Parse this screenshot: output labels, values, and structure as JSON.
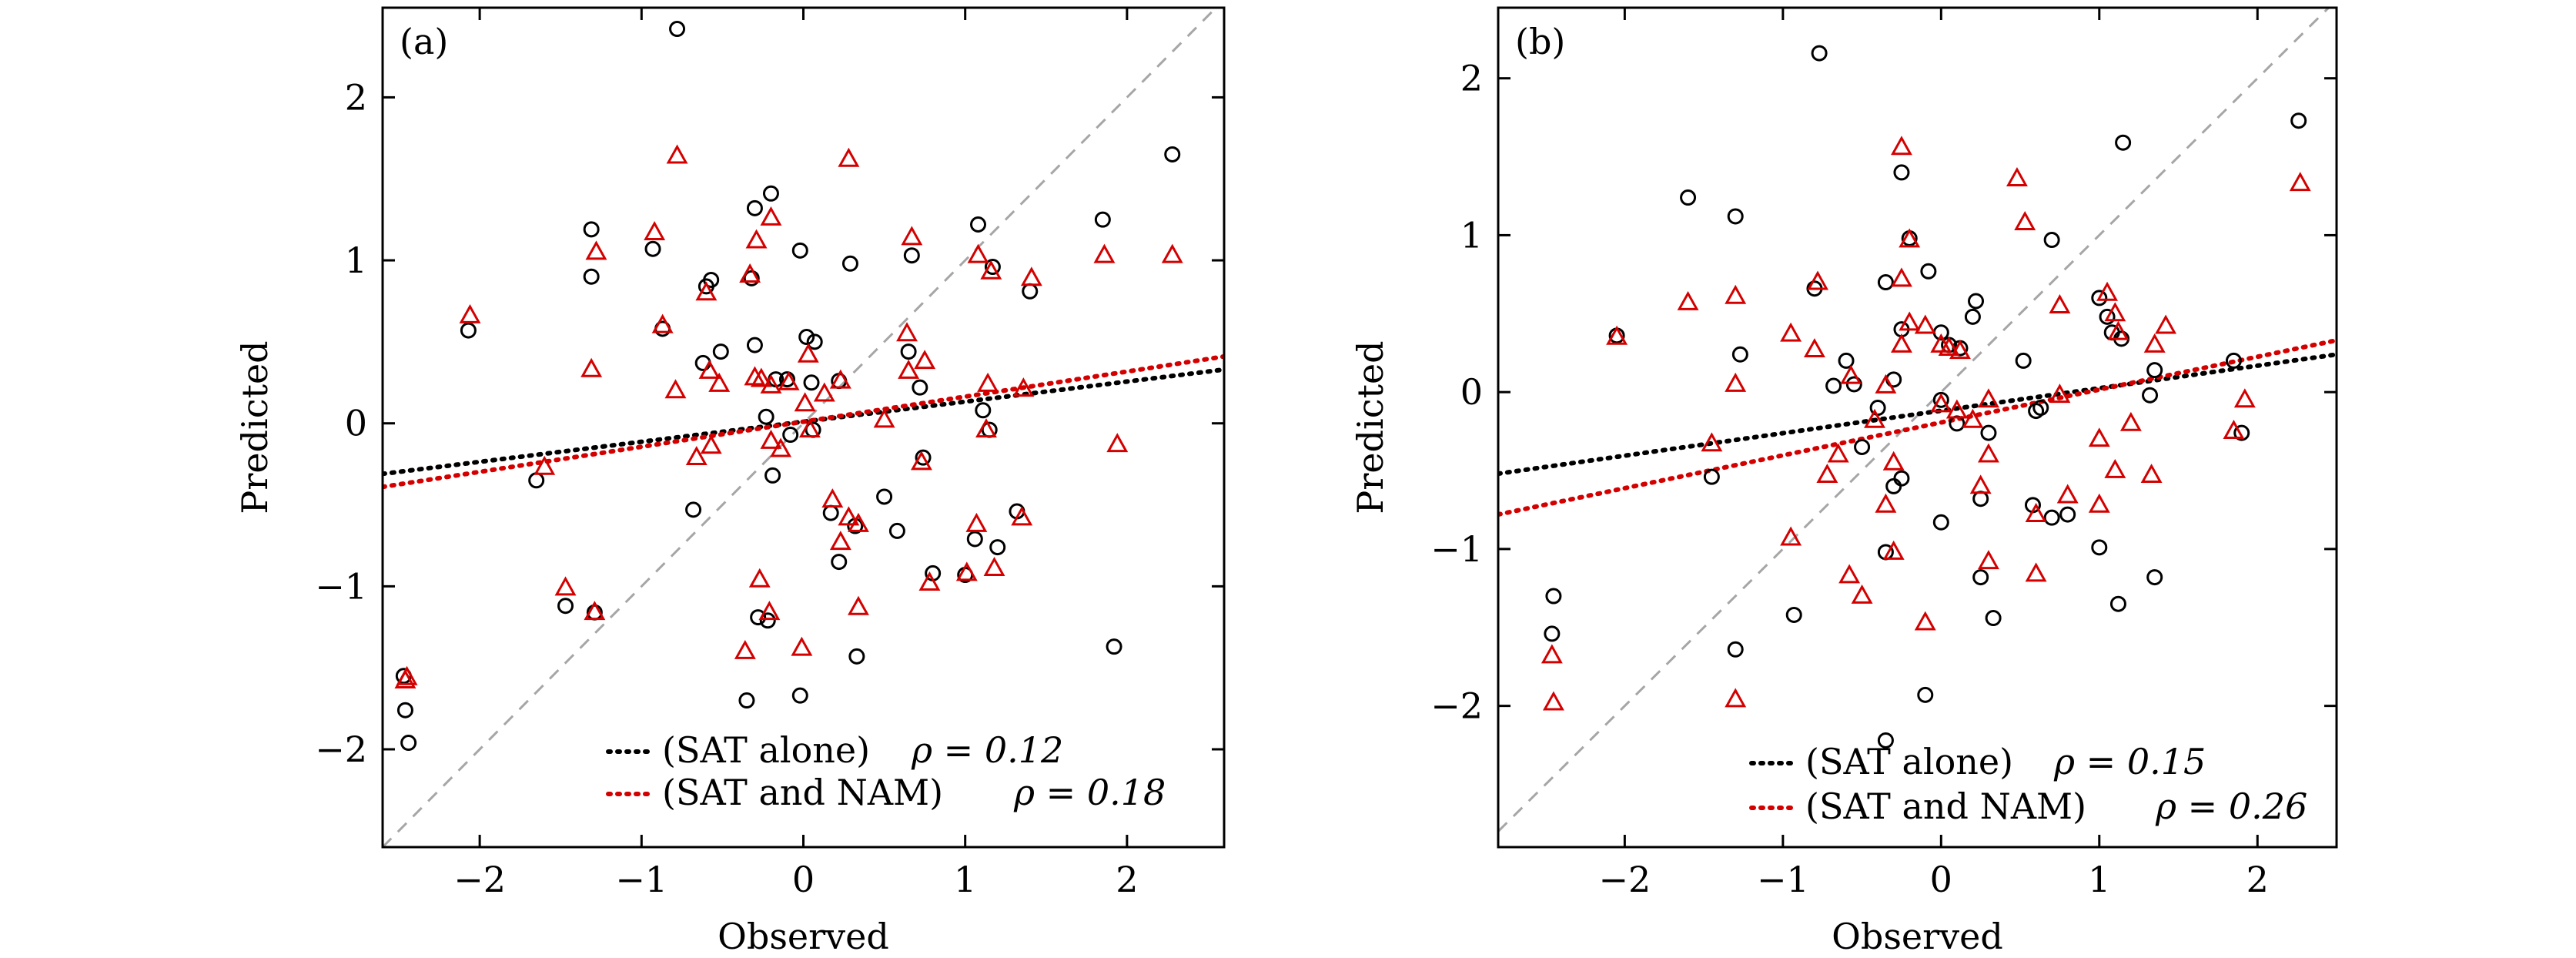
{
  "chart_data": [
    {
      "type": "scatter",
      "panel_label": "(a)",
      "xlabel": "Observed",
      "ylabel": "Predicted",
      "xlim": [
        -2.6,
        2.6
      ],
      "ylim": [
        -2.6,
        2.55
      ],
      "xticks": [
        -2,
        -1,
        0,
        1,
        2
      ],
      "yticks": [
        -2,
        -1,
        0,
        1,
        2
      ],
      "tick_labels_x": [
        "−2",
        "−1",
        "0",
        "1",
        "2"
      ],
      "tick_labels_y": [
        "−2",
        "−1",
        "0",
        "1",
        "2"
      ],
      "reference_line": "y = x (grey dashed)",
      "legend_position": "bottom-center",
      "series": [
        {
          "name": "(SAT alone)",
          "legend_label": "(SAT alone)",
          "rho_label": "ρ = 0.12",
          "marker": "circle",
          "color": "#000000",
          "fit": {
            "x": [
              -2.6,
              2.6
            ],
            "y": [
              -0.31,
              0.33
            ]
          },
          "points": [
            [
              -0.78,
              2.42
            ],
            [
              2.28,
              1.65
            ],
            [
              1.85,
              1.25
            ],
            [
              1.08,
              1.22
            ],
            [
              -0.2,
              1.41
            ],
            [
              -0.3,
              1.32
            ],
            [
              -1.31,
              1.19
            ],
            [
              -0.93,
              1.07
            ],
            [
              -0.02,
              1.06
            ],
            [
              0.29,
              0.98
            ],
            [
              0.67,
              1.03
            ],
            [
              1.17,
              0.96
            ],
            [
              -1.31,
              0.9
            ],
            [
              -0.6,
              0.84
            ],
            [
              -0.57,
              0.88
            ],
            [
              -0.32,
              0.89
            ],
            [
              1.4,
              0.81
            ],
            [
              -0.87,
              0.58
            ],
            [
              -2.07,
              0.57
            ],
            [
              -0.51,
              0.44
            ],
            [
              0.02,
              0.53
            ],
            [
              0.07,
              0.5
            ],
            [
              0.65,
              0.44
            ],
            [
              -0.62,
              0.37
            ],
            [
              -0.3,
              0.48
            ],
            [
              -0.17,
              0.27
            ],
            [
              0.05,
              0.25
            ],
            [
              0.22,
              0.26
            ],
            [
              -0.1,
              0.27
            ],
            [
              1.11,
              0.08
            ],
            [
              0.72,
              0.22
            ],
            [
              1.15,
              -0.04
            ],
            [
              -0.23,
              0.04
            ],
            [
              0.06,
              -0.04
            ],
            [
              -0.08,
              -0.07
            ],
            [
              -1.65,
              -0.35
            ],
            [
              -0.19,
              -0.32
            ],
            [
              0.74,
              -0.21
            ],
            [
              -0.68,
              -0.53
            ],
            [
              0.17,
              -0.55
            ],
            [
              0.5,
              -0.45
            ],
            [
              0.32,
              -0.63
            ],
            [
              0.58,
              -0.66
            ],
            [
              1.32,
              -0.54
            ],
            [
              1.06,
              -0.71
            ],
            [
              1.2,
              -0.76
            ],
            [
              0.22,
              -0.85
            ],
            [
              0.8,
              -0.92
            ],
            [
              1.0,
              -0.93
            ],
            [
              -1.47,
              -1.12
            ],
            [
              -1.29,
              -1.16
            ],
            [
              -0.28,
              -1.19
            ],
            [
              -0.22,
              -1.21
            ],
            [
              0.33,
              -1.43
            ],
            [
              1.92,
              -1.37
            ],
            [
              -0.35,
              -1.7
            ],
            [
              -0.02,
              -1.67
            ],
            [
              -2.46,
              -1.76
            ],
            [
              -2.44,
              -1.96
            ],
            [
              -2.47,
              -1.55
            ]
          ]
        },
        {
          "name": "(SAT and NAM)",
          "legend_label": "(SAT and NAM)",
          "rho_label": "ρ = 0.18",
          "marker": "triangle",
          "color": "#d40000",
          "fit": {
            "x": [
              -2.6,
              2.6
            ],
            "y": [
              -0.39,
              0.41
            ]
          },
          "points": [
            [
              -0.78,
              1.64
            ],
            [
              0.28,
              1.62
            ],
            [
              -0.92,
              1.17
            ],
            [
              -0.29,
              1.12
            ],
            [
              -0.2,
              1.26
            ],
            [
              1.08,
              1.03
            ],
            [
              0.67,
              1.14
            ],
            [
              1.86,
              1.03
            ],
            [
              2.28,
              1.03
            ],
            [
              -1.28,
              1.05
            ],
            [
              1.16,
              0.93
            ],
            [
              1.41,
              0.89
            ],
            [
              -0.33,
              0.91
            ],
            [
              -0.6,
              0.8
            ],
            [
              -2.06,
              0.66
            ],
            [
              -0.87,
              0.6
            ],
            [
              0.64,
              0.55
            ],
            [
              -1.31,
              0.33
            ],
            [
              -0.58,
              0.32
            ],
            [
              0.03,
              0.42
            ],
            [
              0.75,
              0.38
            ],
            [
              0.65,
              0.32
            ],
            [
              -0.52,
              0.24
            ],
            [
              -0.26,
              0.27
            ],
            [
              -0.2,
              0.23
            ],
            [
              -0.3,
              0.28
            ],
            [
              0.13,
              0.18
            ],
            [
              0.23,
              0.26
            ],
            [
              -0.09,
              0.25
            ],
            [
              -0.79,
              0.2
            ],
            [
              1.14,
              0.24
            ],
            [
              1.36,
              0.21
            ],
            [
              0.01,
              0.12
            ],
            [
              0.04,
              -0.04
            ],
            [
              -0.2,
              -0.11
            ],
            [
              -0.57,
              -0.14
            ],
            [
              -0.14,
              -0.16
            ],
            [
              0.5,
              0.02
            ],
            [
              -0.66,
              -0.21
            ],
            [
              -1.6,
              -0.27
            ],
            [
              0.73,
              -0.24
            ],
            [
              1.13,
              -0.04
            ],
            [
              1.94,
              -0.13
            ],
            [
              0.18,
              -0.47
            ],
            [
              0.28,
              -0.58
            ],
            [
              0.34,
              -0.62
            ],
            [
              1.07,
              -0.62
            ],
            [
              1.35,
              -0.58
            ],
            [
              0.23,
              -0.73
            ],
            [
              1.18,
              -0.89
            ],
            [
              0.78,
              -0.98
            ],
            [
              1.01,
              -0.92
            ],
            [
              -1.47,
              -1.01
            ],
            [
              -1.29,
              -1.16
            ],
            [
              -0.27,
              -0.96
            ],
            [
              -0.21,
              -1.16
            ],
            [
              0.34,
              -1.13
            ],
            [
              -0.36,
              -1.4
            ],
            [
              -0.01,
              -1.38
            ],
            [
              -2.45,
              -1.56
            ],
            [
              -2.46,
              -1.58
            ]
          ]
        }
      ]
    },
    {
      "type": "scatter",
      "panel_label": "(b)",
      "xlabel": "Observed",
      "ylabel": "Predicted",
      "xlim": [
        -2.8,
        2.5
      ],
      "ylim": [
        -2.9,
        2.45
      ],
      "xticks": [
        -2,
        -1,
        0,
        1,
        2
      ],
      "yticks": [
        -2,
        -1,
        0,
        1,
        2
      ],
      "tick_labels_x": [
        "−2",
        "−1",
        "0",
        "1",
        "2"
      ],
      "tick_labels_y": [
        "−2",
        "−1",
        "0",
        "1",
        "2"
      ],
      "reference_line": "y = x (grey dashed)",
      "legend_position": "bottom-center",
      "series": [
        {
          "name": "(SAT alone)",
          "legend_label": "(SAT alone)",
          "rho_label": "ρ = 0.15",
          "marker": "circle",
          "color": "#000000",
          "fit": {
            "x": [
              -2.8,
              2.5
            ],
            "y": [
              -0.52,
              0.24
            ]
          },
          "points": [
            [
              -0.77,
              2.16
            ],
            [
              2.26,
              1.73
            ],
            [
              1.15,
              1.59
            ],
            [
              -1.6,
              1.24
            ],
            [
              -1.3,
              1.12
            ],
            [
              -0.25,
              1.4
            ],
            [
              -0.2,
              0.98
            ],
            [
              0.7,
              0.97
            ],
            [
              -0.08,
              0.77
            ],
            [
              -0.35,
              0.7
            ],
            [
              -0.8,
              0.66
            ],
            [
              0.22,
              0.58
            ],
            [
              0.2,
              0.48
            ],
            [
              -0.25,
              0.4
            ],
            [
              1.0,
              0.6
            ],
            [
              1.05,
              0.48
            ],
            [
              1.08,
              0.38
            ],
            [
              1.14,
              0.34
            ],
            [
              1.35,
              0.14
            ],
            [
              -2.05,
              0.36
            ],
            [
              -1.27,
              0.24
            ],
            [
              -0.6,
              0.2
            ],
            [
              -0.68,
              0.04
            ],
            [
              -0.55,
              0.05
            ],
            [
              0.0,
              0.38
            ],
            [
              0.05,
              0.3
            ],
            [
              0.12,
              0.28
            ],
            [
              0.52,
              0.2
            ],
            [
              -0.3,
              0.08
            ],
            [
              1.85,
              0.2
            ],
            [
              -0.4,
              -0.1
            ],
            [
              0.0,
              -0.05
            ],
            [
              0.1,
              -0.2
            ],
            [
              0.3,
              -0.26
            ],
            [
              0.6,
              -0.12
            ],
            [
              1.32,
              -0.02
            ],
            [
              1.9,
              -0.26
            ],
            [
              -0.5,
              -0.35
            ],
            [
              -1.45,
              -0.54
            ],
            [
              -0.3,
              -0.6
            ],
            [
              -0.25,
              -0.55
            ],
            [
              0.25,
              -0.68
            ],
            [
              0.58,
              -0.72
            ],
            [
              0.7,
              -0.8
            ],
            [
              0.8,
              -0.78
            ],
            [
              0.0,
              -0.83
            ],
            [
              1.0,
              -0.99
            ],
            [
              1.12,
              -1.35
            ],
            [
              1.35,
              -1.18
            ],
            [
              0.25,
              -1.18
            ],
            [
              0.33,
              -1.44
            ],
            [
              -0.35,
              -1.02
            ],
            [
              -0.93,
              -1.42
            ],
            [
              -1.3,
              -1.64
            ],
            [
              -0.1,
              -1.93
            ],
            [
              -0.35,
              -2.22
            ],
            [
              -2.45,
              -1.3
            ],
            [
              -2.46,
              -1.54
            ],
            [
              0.63,
              -0.1
            ]
          ]
        },
        {
          "name": "(SAT and NAM)",
          "legend_label": "(SAT and NAM)",
          "rho_label": "ρ = 0.26",
          "marker": "triangle",
          "color": "#d40000",
          "fit": {
            "x": [
              -2.8,
              2.5
            ],
            "y": [
              -0.78,
              0.33
            ]
          },
          "points": [
            [
              -0.25,
              1.56
            ],
            [
              0.48,
              1.36
            ],
            [
              0.53,
              1.08
            ],
            [
              2.27,
              1.33
            ],
            [
              -0.2,
              0.97
            ],
            [
              -0.25,
              0.72
            ],
            [
              -0.78,
              0.7
            ],
            [
              -1.6,
              0.57
            ],
            [
              -1.3,
              0.61
            ],
            [
              -0.1,
              0.42
            ],
            [
              1.05,
              0.63
            ],
            [
              1.42,
              0.42
            ],
            [
              -0.2,
              0.44
            ],
            [
              -0.25,
              0.3
            ],
            [
              0.05,
              0.28
            ],
            [
              0.0,
              0.3
            ],
            [
              0.12,
              0.26
            ],
            [
              -0.95,
              0.37
            ],
            [
              -0.8,
              0.27
            ],
            [
              0.75,
              0.55
            ],
            [
              1.1,
              0.5
            ],
            [
              1.12,
              0.38
            ],
            [
              1.35,
              0.3
            ],
            [
              -2.05,
              0.35
            ],
            [
              -1.3,
              0.05
            ],
            [
              -0.57,
              0.1
            ],
            [
              -0.35,
              0.04
            ],
            [
              0.0,
              -0.08
            ],
            [
              0.1,
              -0.12
            ],
            [
              0.2,
              -0.18
            ],
            [
              0.75,
              -0.02
            ],
            [
              1.0,
              -0.3
            ],
            [
              1.2,
              -0.2
            ],
            [
              1.92,
              -0.05
            ],
            [
              1.85,
              -0.25
            ],
            [
              -1.45,
              -0.33
            ],
            [
              -0.65,
              -0.4
            ],
            [
              -0.3,
              -0.45
            ],
            [
              0.3,
              -0.4
            ],
            [
              0.25,
              -0.6
            ],
            [
              0.8,
              -0.66
            ],
            [
              1.0,
              -0.72
            ],
            [
              1.33,
              -0.53
            ],
            [
              -0.72,
              -0.53
            ],
            [
              -0.35,
              -0.72
            ],
            [
              0.6,
              -0.78
            ],
            [
              -0.95,
              -0.93
            ],
            [
              -0.58,
              -1.17
            ],
            [
              -0.5,
              -1.3
            ],
            [
              -0.3,
              -1.02
            ],
            [
              0.3,
              -1.08
            ],
            [
              0.6,
              -1.16
            ],
            [
              -0.1,
              -1.47
            ],
            [
              -1.3,
              -1.96
            ],
            [
              -2.46,
              -1.68
            ],
            [
              -2.45,
              -1.98
            ],
            [
              0.3,
              -0.05
            ],
            [
              1.1,
              -0.5
            ],
            [
              -0.42,
              -0.18
            ]
          ]
        }
      ]
    }
  ]
}
